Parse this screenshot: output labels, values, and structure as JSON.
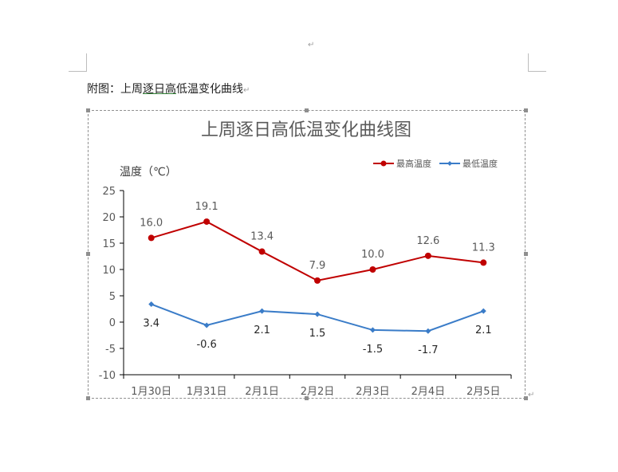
{
  "page": {
    "top_mark": "↵",
    "caption_prefix": "附图：上周",
    "caption_underlined": "逐日高",
    "caption_suffix": "低温变化曲线",
    "caption_mark": "↵",
    "end_mark": "↵"
  },
  "chart_data": {
    "type": "line",
    "title": "上周逐日高低温变化曲线图",
    "xlabel": "",
    "ylabel": "温度（℃）",
    "categories": [
      "1月30日",
      "1月31日",
      "2月1日",
      "2月2日",
      "2月3日",
      "2月4日",
      "2月5日"
    ],
    "ylim": [
      -10,
      25
    ],
    "yticks": [
      25,
      20,
      15,
      10,
      5,
      0,
      -5,
      -10
    ],
    "grid": false,
    "legend_position": "top-right",
    "series": [
      {
        "name": "最高温度",
        "color": "#c00000",
        "marker": "circle",
        "values": [
          16.0,
          19.1,
          13.4,
          7.9,
          10.0,
          12.6,
          11.3
        ],
        "labels": [
          "16.0",
          "19.1",
          "13.4",
          "7.9",
          "10.0",
          "12.6",
          "11.3"
        ]
      },
      {
        "name": "最低温度",
        "color": "#3a7cc8",
        "marker": "diamond",
        "values": [
          3.4,
          -0.6,
          2.1,
          1.5,
          -1.5,
          -1.7,
          2.1
        ],
        "labels": [
          "3.4",
          "-0.6",
          "2.1",
          "1.5",
          "-1.5",
          "-1.7",
          "2.1"
        ]
      }
    ]
  }
}
